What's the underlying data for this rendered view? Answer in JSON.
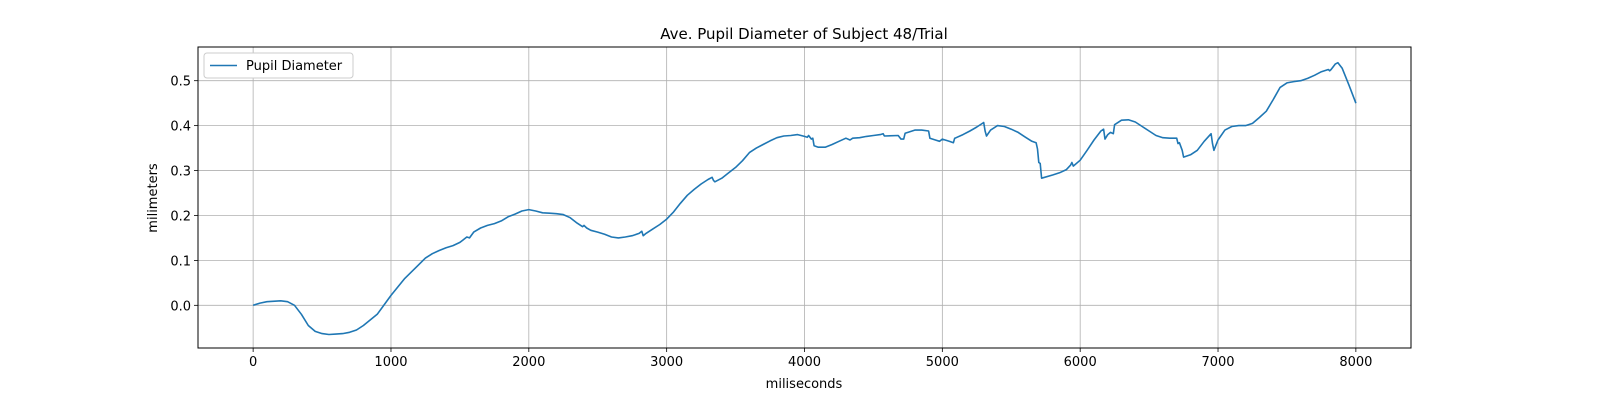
{
  "chart_data": {
    "type": "line",
    "title": "Ave. Pupil Diameter of Subject 48/Trial",
    "xlabel": "miliseconds",
    "ylabel": "milimeters",
    "xlim": [
      -400,
      8400
    ],
    "ylim": [
      -0.095,
      0.575
    ],
    "xticks": [
      0,
      1000,
      2000,
      3000,
      4000,
      5000,
      6000,
      7000,
      8000
    ],
    "yticks": [
      0.0,
      0.1,
      0.2,
      0.3,
      0.4,
      0.5
    ],
    "xtick_labels": [
      "0",
      "1000",
      "2000",
      "3000",
      "4000",
      "5000",
      "6000",
      "7000",
      "8000"
    ],
    "ytick_labels": [
      "0.0",
      "0.1",
      "0.2",
      "0.3",
      "0.4",
      "0.5"
    ],
    "grid": true,
    "legend": "top-left",
    "series": [
      {
        "name": "Pupil Diameter",
        "color": "#1f77b4",
        "x": [
          0,
          50,
          100,
          200,
          250,
          300,
          350,
          400,
          450,
          500,
          550,
          600,
          650,
          700,
          750,
          800,
          900,
          1000,
          1100,
          1200,
          1250,
          1300,
          1350,
          1400,
          1450,
          1500,
          1520,
          1550,
          1570,
          1600,
          1650,
          1700,
          1750,
          1800,
          1850,
          1900,
          1950,
          2000,
          2050,
          2100,
          2150,
          2200,
          2250,
          2300,
          2350,
          2390,
          2400,
          2420,
          2450,
          2500,
          2550,
          2600,
          2650,
          2700,
          2750,
          2800,
          2820,
          2830,
          2850,
          2900,
          2950,
          3000,
          3050,
          3100,
          3150,
          3200,
          3250,
          3300,
          3330,
          3340,
          3350,
          3400,
          3450,
          3500,
          3550,
          3600,
          3650,
          3700,
          3750,
          3800,
          3850,
          3900,
          3950,
          4000,
          4020,
          4030,
          4050,
          4060,
          4070,
          4100,
          4150,
          4200,
          4250,
          4300,
          4330,
          4350,
          4400,
          4450,
          4500,
          4550,
          4570,
          4580,
          4680,
          4700,
          4720,
          4730,
          4750,
          4800,
          4850,
          4900,
          4910,
          4950,
          4980,
          5000,
          5050,
          5080,
          5090,
          5100,
          5150,
          5200,
          5250,
          5300,
          5310,
          5320,
          5350,
          5400,
          5450,
          5500,
          5550,
          5600,
          5650,
          5680,
          5690,
          5700,
          5710,
          5720,
          5800,
          5850,
          5900,
          5930,
          5940,
          5950,
          6000,
          6050,
          6100,
          6150,
          6170,
          6180,
          6200,
          6220,
          6240,
          6250,
          6300,
          6350,
          6400,
          6450,
          6500,
          6550,
          6600,
          6650,
          6700,
          6710,
          6720,
          6740,
          6750,
          6800,
          6850,
          6900,
          6950,
          6960,
          6970,
          7000,
          7050,
          7100,
          7150,
          7200,
          7250,
          7300,
          7350,
          7400,
          7410,
          7450,
          7500,
          7550,
          7600,
          7650,
          7700,
          7750,
          7800,
          7810,
          7820,
          7850,
          7870,
          7900,
          7950,
          8000
        ],
        "values": [
          0.0,
          0.005,
          0.008,
          0.01,
          0.008,
          0.0,
          -0.02,
          -0.045,
          -0.058,
          -0.063,
          -0.065,
          -0.064,
          -0.063,
          -0.06,
          -0.055,
          -0.045,
          -0.02,
          0.022,
          0.06,
          0.09,
          0.105,
          0.115,
          0.122,
          0.128,
          0.133,
          0.14,
          0.145,
          0.152,
          0.15,
          0.163,
          0.172,
          0.178,
          0.182,
          0.188,
          0.197,
          0.203,
          0.21,
          0.213,
          0.21,
          0.206,
          0.205,
          0.204,
          0.202,
          0.195,
          0.183,
          0.175,
          0.178,
          0.172,
          0.167,
          0.163,
          0.158,
          0.152,
          0.15,
          0.152,
          0.155,
          0.16,
          0.165,
          0.155,
          0.16,
          0.17,
          0.18,
          0.192,
          0.208,
          0.227,
          0.245,
          0.258,
          0.27,
          0.28,
          0.285,
          0.278,
          0.275,
          0.283,
          0.295,
          0.307,
          0.322,
          0.34,
          0.35,
          0.358,
          0.366,
          0.373,
          0.377,
          0.378,
          0.38,
          0.376,
          0.374,
          0.378,
          0.37,
          0.372,
          0.355,
          0.352,
          0.352,
          0.358,
          0.365,
          0.372,
          0.368,
          0.372,
          0.373,
          0.376,
          0.378,
          0.38,
          0.382,
          0.377,
          0.378,
          0.37,
          0.37,
          0.383,
          0.385,
          0.39,
          0.39,
          0.388,
          0.372,
          0.368,
          0.365,
          0.37,
          0.365,
          0.362,
          0.372,
          0.373,
          0.38,
          0.388,
          0.397,
          0.407,
          0.388,
          0.377,
          0.39,
          0.4,
          0.398,
          0.392,
          0.385,
          0.375,
          0.365,
          0.362,
          0.348,
          0.318,
          0.316,
          0.283,
          0.29,
          0.295,
          0.302,
          0.312,
          0.318,
          0.31,
          0.323,
          0.345,
          0.368,
          0.388,
          0.392,
          0.37,
          0.38,
          0.385,
          0.382,
          0.402,
          0.412,
          0.413,
          0.408,
          0.398,
          0.388,
          0.378,
          0.373,
          0.372,
          0.372,
          0.36,
          0.362,
          0.345,
          0.33,
          0.335,
          0.345,
          0.365,
          0.382,
          0.36,
          0.345,
          0.368,
          0.39,
          0.398,
          0.4,
          0.4,
          0.405,
          0.418,
          0.432,
          0.458,
          0.463,
          0.485,
          0.495,
          0.498,
          0.5,
          0.505,
          0.512,
          0.52,
          0.525,
          0.522,
          0.525,
          0.537,
          0.54,
          0.528,
          0.49,
          0.45
        ]
      }
    ]
  }
}
